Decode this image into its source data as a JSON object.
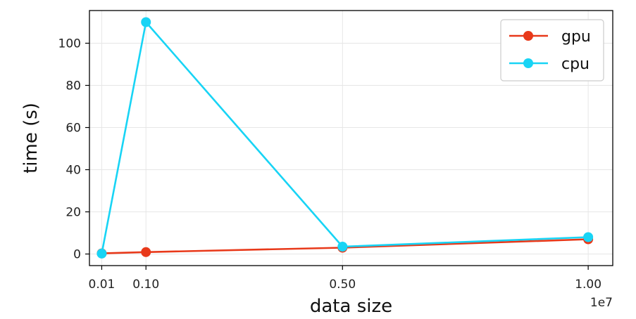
{
  "chart_data": {
    "type": "line",
    "title": "",
    "xlabel": "data size",
    "ylabel": "time (s)",
    "x_offset_label": "1e7",
    "x_scale_factor": 10000000,
    "x": [
      100000,
      1000000,
      5000000,
      10000000
    ],
    "xlim": [
      -150000,
      10500000
    ],
    "ylim": [
      -5.5,
      115.5
    ],
    "x_ticks": [
      100000,
      1000000,
      5000000,
      10000000
    ],
    "x_tick_labels": [
      "0.01",
      "0.10",
      "0.50",
      "1.00"
    ],
    "y_ticks": [
      0,
      20,
      40,
      60,
      80,
      100
    ],
    "y_tick_labels": [
      "0",
      "20",
      "40",
      "60",
      "80",
      "100"
    ],
    "grid": true,
    "legend_position": "top-right",
    "series": [
      {
        "name": "gpu",
        "color": "#e8391a",
        "values": [
          0.3,
          0.9,
          3.0,
          7.0
        ]
      },
      {
        "name": "cpu",
        "color": "#18d4f5",
        "values": [
          0.2,
          110.0,
          3.5,
          8.0
        ]
      }
    ]
  }
}
